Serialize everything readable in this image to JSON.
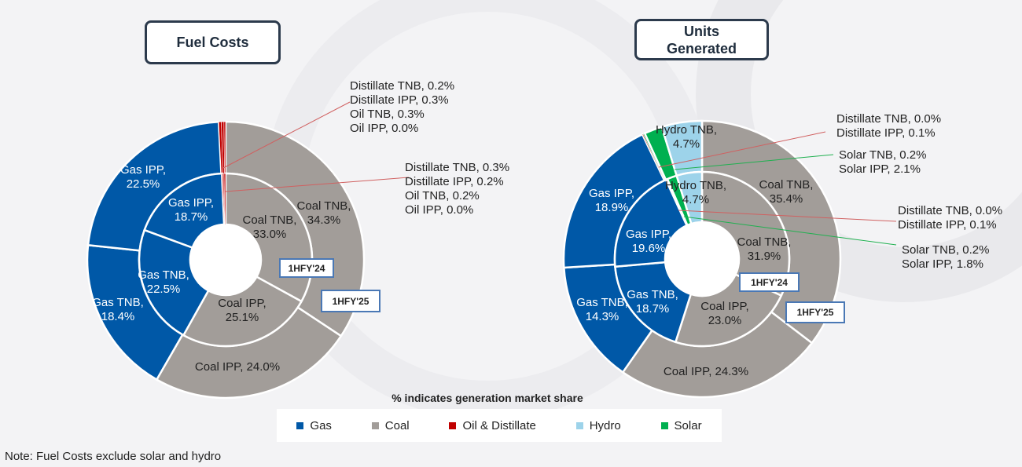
{
  "subtitle": "% indicates generation market share",
  "note": "Note: Fuel Costs exclude solar and hydro",
  "colors": {
    "Gas": "#0058a7",
    "Coal": "#a29d99",
    "Oil & Distillate": "#c00000",
    "Hydro": "#9dd3ea",
    "Solar": "#00b050"
  },
  "legend": [
    {
      "label": "Gas",
      "color": "#0058a7"
    },
    {
      "label": "Coal",
      "color": "#a29d99"
    },
    {
      "label": "Oil & Distillate",
      "color": "#c00000"
    },
    {
      "label": "Hydro",
      "color": "#9dd3ea"
    },
    {
      "label": "Solar",
      "color": "#00b050"
    }
  ],
  "chart_data": [
    {
      "type": "donut",
      "title": "Fuel Costs",
      "ring_labels": {
        "outer": "1HFY'25",
        "inner": "1HFY'24"
      },
      "categories": [
        "Coal TNB",
        "Coal IPP",
        "Gas TNB",
        "Gas IPP",
        "Oil IPP",
        "Oil TNB",
        "Distillate IPP",
        "Distillate TNB"
      ],
      "fuel": [
        "Coal",
        "Coal",
        "Gas",
        "Gas",
        "Oil & Distillate",
        "Oil & Distillate",
        "Oil & Distillate",
        "Oil & Distillate"
      ],
      "series": [
        {
          "name": "1HFY'25",
          "values": [
            34.3,
            24.0,
            18.4,
            22.5,
            0.0,
            0.3,
            0.3,
            0.2
          ]
        },
        {
          "name": "1HFY'24",
          "values": [
            33.0,
            25.1,
            22.5,
            18.7,
            0.0,
            0.2,
            0.2,
            0.3
          ]
        }
      ]
    },
    {
      "type": "donut",
      "title": "Units Generated",
      "ring_labels": {
        "outer": "1HFY'25",
        "inner": "1HFY'24"
      },
      "categories": [
        "Coal TNB",
        "Coal IPP",
        "Gas TNB",
        "Gas IPP",
        "Distillate TNB",
        "Distillate IPP",
        "Solar TNB",
        "Solar IPP",
        "Hydro TNB"
      ],
      "fuel": [
        "Coal",
        "Coal",
        "Gas",
        "Gas",
        "Oil & Distillate",
        "Oil & Distillate",
        "Solar",
        "Solar",
        "Hydro"
      ],
      "series": [
        {
          "name": "1HFY'25",
          "values": [
            35.4,
            24.3,
            14.3,
            18.9,
            0.0,
            0.1,
            0.2,
            2.1,
            4.7
          ]
        },
        {
          "name": "1HFY'24",
          "values": [
            31.9,
            23.0,
            18.7,
            19.6,
            0.0,
            0.1,
            0.2,
            1.8,
            4.7
          ]
        }
      ]
    }
  ]
}
